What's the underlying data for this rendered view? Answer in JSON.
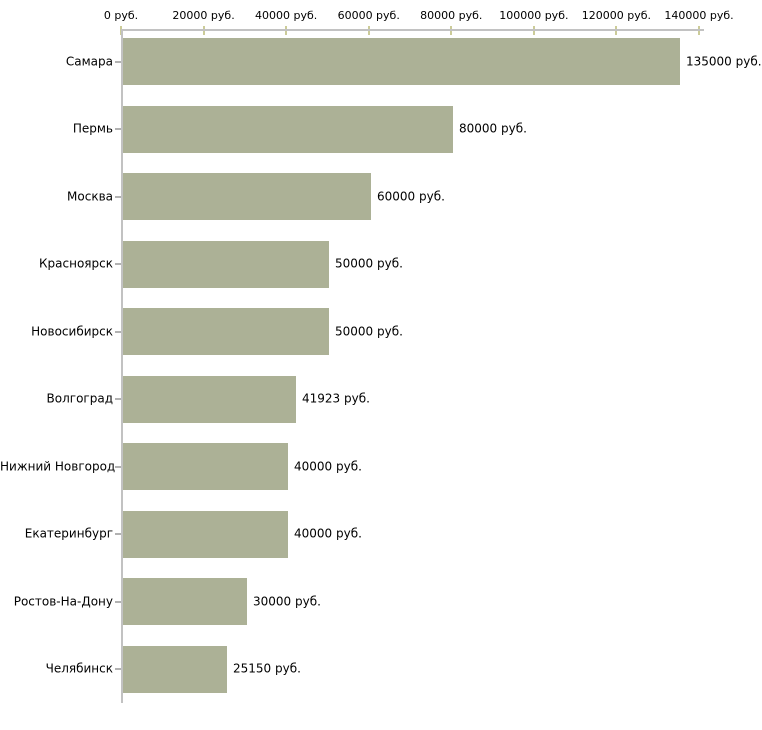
{
  "chart_data": {
    "type": "bar",
    "orientation": "horizontal",
    "title": "",
    "xlabel": "",
    "ylabel": "",
    "unit": "руб.",
    "categories": [
      "Самара",
      "Пермь",
      "Москва",
      "Красноярск",
      "Новосибирск",
      "Волгоград",
      "Нижний Новгород",
      "Екатеринбург",
      "Ростов-На-Дону",
      "Челябинск"
    ],
    "values": [
      135000,
      80000,
      60000,
      50000,
      50000,
      41923,
      40000,
      40000,
      30000,
      25150
    ],
    "value_labels": [
      "135000 руб.",
      "80000 руб.",
      "60000 руб.",
      "50000 руб.",
      "50000 руб.",
      "41923 руб.",
      "40000 руб.",
      "40000 руб.",
      "30000 руб.",
      "25150 руб."
    ],
    "x_axis": {
      "position": "top",
      "min": 0,
      "max": 140000,
      "tick_step": 20000,
      "tick_labels": [
        "0 руб.",
        "20000 руб.",
        "40000 руб.",
        "60000 руб.",
        "80000 руб.",
        "100000 руб.",
        "120000 руб.",
        "140000 руб."
      ]
    },
    "legend": null,
    "grid": false,
    "colors": {
      "bar": "#acb196",
      "axis_line": "#c2c2c2",
      "value_tick": "#cccc99",
      "category_tick": "#b2b2b2",
      "text": "#000000",
      "background": "#ffffff"
    }
  }
}
